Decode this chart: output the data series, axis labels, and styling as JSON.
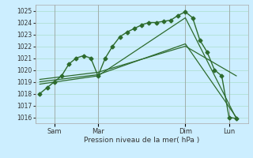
{
  "title": "",
  "xlabel": "Pression niveau de la mer( hPa )",
  "background_color": "#cceeff",
  "grid_color": "#aaddcc",
  "line_color": "#2d6b2d",
  "ylim": [
    1015.5,
    1025.5
  ],
  "xlim": [
    -0.3,
    14.3
  ],
  "day_labels": [
    "Sam",
    "Mar",
    "Dim",
    "Lun"
  ],
  "day_positions": [
    1,
    4,
    10,
    13
  ],
  "vline_positions": [
    1,
    4,
    10,
    13
  ],
  "series": [
    {
      "x": [
        0,
        0.5,
        1,
        1.5,
        2,
        2.5,
        3,
        3.5,
        4,
        4.5,
        5,
        5.5,
        6,
        6.5,
        7,
        7.5,
        8,
        8.5,
        9,
        9.5,
        10,
        10.5,
        11,
        11.5,
        12,
        12.5,
        13,
        13.5
      ],
      "y": [
        1018.0,
        1018.5,
        1019.0,
        1019.5,
        1020.5,
        1021.0,
        1021.2,
        1021.0,
        1019.5,
        1021.0,
        1022.0,
        1022.8,
        1023.2,
        1023.5,
        1023.8,
        1024.0,
        1024.0,
        1024.1,
        1024.2,
        1024.6,
        1024.9,
        1024.4,
        1022.5,
        1021.5,
        1020.0,
        1019.5,
        1016.0,
        1015.9
      ],
      "marker": true,
      "marker_x": [
        0,
        0.5,
        1,
        1.5,
        2,
        2.5,
        3,
        3.5,
        4,
        4.5,
        5,
        5.5,
        6,
        6.5,
        7,
        7.5,
        8,
        8.5,
        9,
        9.5,
        10,
        10.5,
        11,
        11.5,
        12,
        12.5,
        13,
        13.5
      ],
      "marker_y": [
        1018.0,
        1018.5,
        1019.0,
        1019.5,
        1020.5,
        1021.0,
        1021.2,
        1021.0,
        1019.5,
        1021.0,
        1022.0,
        1022.8,
        1023.2,
        1023.5,
        1023.8,
        1024.0,
        1024.0,
        1024.1,
        1024.2,
        1024.6,
        1024.9,
        1024.4,
        1022.5,
        1021.5,
        1020.0,
        1019.5,
        1016.0,
        1015.9
      ]
    },
    {
      "x": [
        0,
        4,
        10,
        13.5
      ],
      "y": [
        1019.2,
        1019.8,
        1022.0,
        1019.5
      ],
      "marker": false
    },
    {
      "x": [
        0,
        4,
        10,
        13.5
      ],
      "y": [
        1019.0,
        1019.6,
        1022.2,
        1016.0
      ],
      "marker": false
    },
    {
      "x": [
        0,
        4,
        10,
        13.5
      ],
      "y": [
        1018.8,
        1019.5,
        1024.4,
        1015.9
      ],
      "marker": false
    }
  ]
}
